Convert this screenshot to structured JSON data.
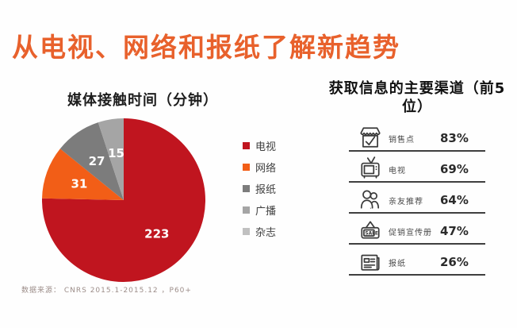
{
  "page": {
    "title": "从电视、网络和报纸了解新趋势",
    "source_note": "数据来源： CNRS 2015.1-2015.12 ，P60+"
  },
  "colors": {
    "title_orange": "#E8612C",
    "separator_dark": "#3F3F3F",
    "pie_value_label": "#FFFFFF"
  },
  "chart_data": [
    {
      "type": "pie",
      "title": "媒体接触时间（分钟）",
      "unit": "分钟",
      "legend_position": "right",
      "start_angle": "12-oclock-clockwise",
      "slices": [
        {
          "key": "tv",
          "label": "电视",
          "value": 223,
          "color": "#C0151F",
          "label_shown": true
        },
        {
          "key": "internet",
          "label": "网络",
          "value": 31,
          "color": "#F25E17",
          "label_shown": true
        },
        {
          "key": "newspaper",
          "label": "报纸",
          "value": 27,
          "color": "#7C7C7C",
          "label_shown": true
        },
        {
          "key": "radio",
          "label": "广播",
          "value": 15,
          "color": "#A5A5A5",
          "label_shown": true
        },
        {
          "key": "magazine",
          "label": "杂志",
          "value": 0,
          "color": "#C0C0C0",
          "label_shown": false
        }
      ]
    },
    {
      "type": "table",
      "title": "获取信息的主要渠道（前5位）",
      "rows": [
        {
          "key": "pos",
          "icon": "market-stall-icon",
          "label": "销售点",
          "value": "83%"
        },
        {
          "key": "tv",
          "icon": "tv-icon",
          "label": "电视",
          "value": "69%"
        },
        {
          "key": "friends",
          "icon": "people-icon",
          "label": "亲友推荐",
          "value": "64%"
        },
        {
          "key": "brochure",
          "icon": "sale-brochure-icon",
          "label": "促销宣传册",
          "value": "47%",
          "icon_text": "SALE"
        },
        {
          "key": "paper",
          "icon": "newspaper-icon",
          "label": "报纸",
          "value": "26%"
        }
      ]
    }
  ]
}
